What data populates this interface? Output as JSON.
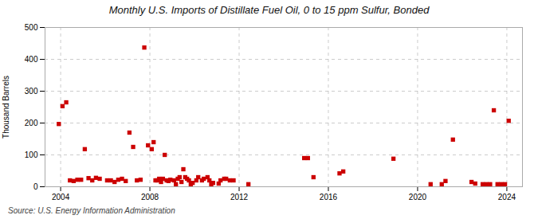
{
  "chart_data": {
    "type": "scatter",
    "title": "Monthly U.S. Imports of Distillate Fuel Oil, 0 to 15 ppm Sulfur, Bonded",
    "ylabel": "Thousand Barrels",
    "source": "Source: U.S. Energy Information Administration",
    "color": "#cc0000",
    "marker": "square",
    "grid": true,
    "xlim": [
      2003.3,
      2024.7
    ],
    "xticks": [
      2004,
      2008,
      2012,
      2016,
      2020,
      2024
    ],
    "ylim": [
      0,
      500
    ],
    "yticks": [
      0,
      100,
      200,
      300,
      400,
      500
    ],
    "x": [
      2003.917,
      2004.083,
      2004.25,
      2004.417,
      2004.583,
      2004.75,
      2004.917,
      2005.083,
      2005.25,
      2005.417,
      2005.583,
      2005.75,
      2006.083,
      2006.25,
      2006.417,
      2006.583,
      2006.75,
      2006.917,
      2007.083,
      2007.25,
      2007.417,
      2007.583,
      2007.75,
      2007.917,
      2008.083,
      2008.167,
      2008.25,
      2008.333,
      2008.417,
      2008.5,
      2008.583,
      2008.667,
      2008.75,
      2008.833,
      2008.917,
      2009.083,
      2009.167,
      2009.25,
      2009.333,
      2009.417,
      2009.5,
      2009.583,
      2009.667,
      2009.75,
      2009.833,
      2009.917,
      2010.083,
      2010.167,
      2010.333,
      2010.417,
      2010.583,
      2010.667,
      2010.75,
      2010.833,
      2011.083,
      2011.167,
      2011.333,
      2011.417,
      2011.583,
      2011.75,
      2012.417,
      2014.917,
      2015.083,
      2015.333,
      2016.5,
      2016.667,
      2018.917,
      2020.583,
      2021.083,
      2021.25,
      2021.583,
      2022.417,
      2022.583,
      2022.917,
      2023.083,
      2023.25,
      2023.417,
      2023.583,
      2023.75,
      2023.917,
      2024.083
    ],
    "values": [
      197,
      253,
      265,
      20,
      18,
      22,
      22,
      118,
      27,
      20,
      28,
      25,
      20,
      20,
      15,
      22,
      25,
      18,
      170,
      125,
      20,
      22,
      437,
      130,
      118,
      140,
      20,
      20,
      25,
      15,
      25,
      100,
      20,
      18,
      22,
      20,
      8,
      25,
      30,
      15,
      55,
      30,
      25,
      20,
      8,
      12,
      20,
      30,
      20,
      25,
      30,
      20,
      8,
      12,
      10,
      20,
      25,
      25,
      20,
      20,
      8,
      90,
      90,
      30,
      42,
      48,
      88,
      8,
      8,
      18,
      148,
      15,
      10,
      8,
      8,
      8,
      240,
      8,
      8,
      8,
      207
    ]
  }
}
